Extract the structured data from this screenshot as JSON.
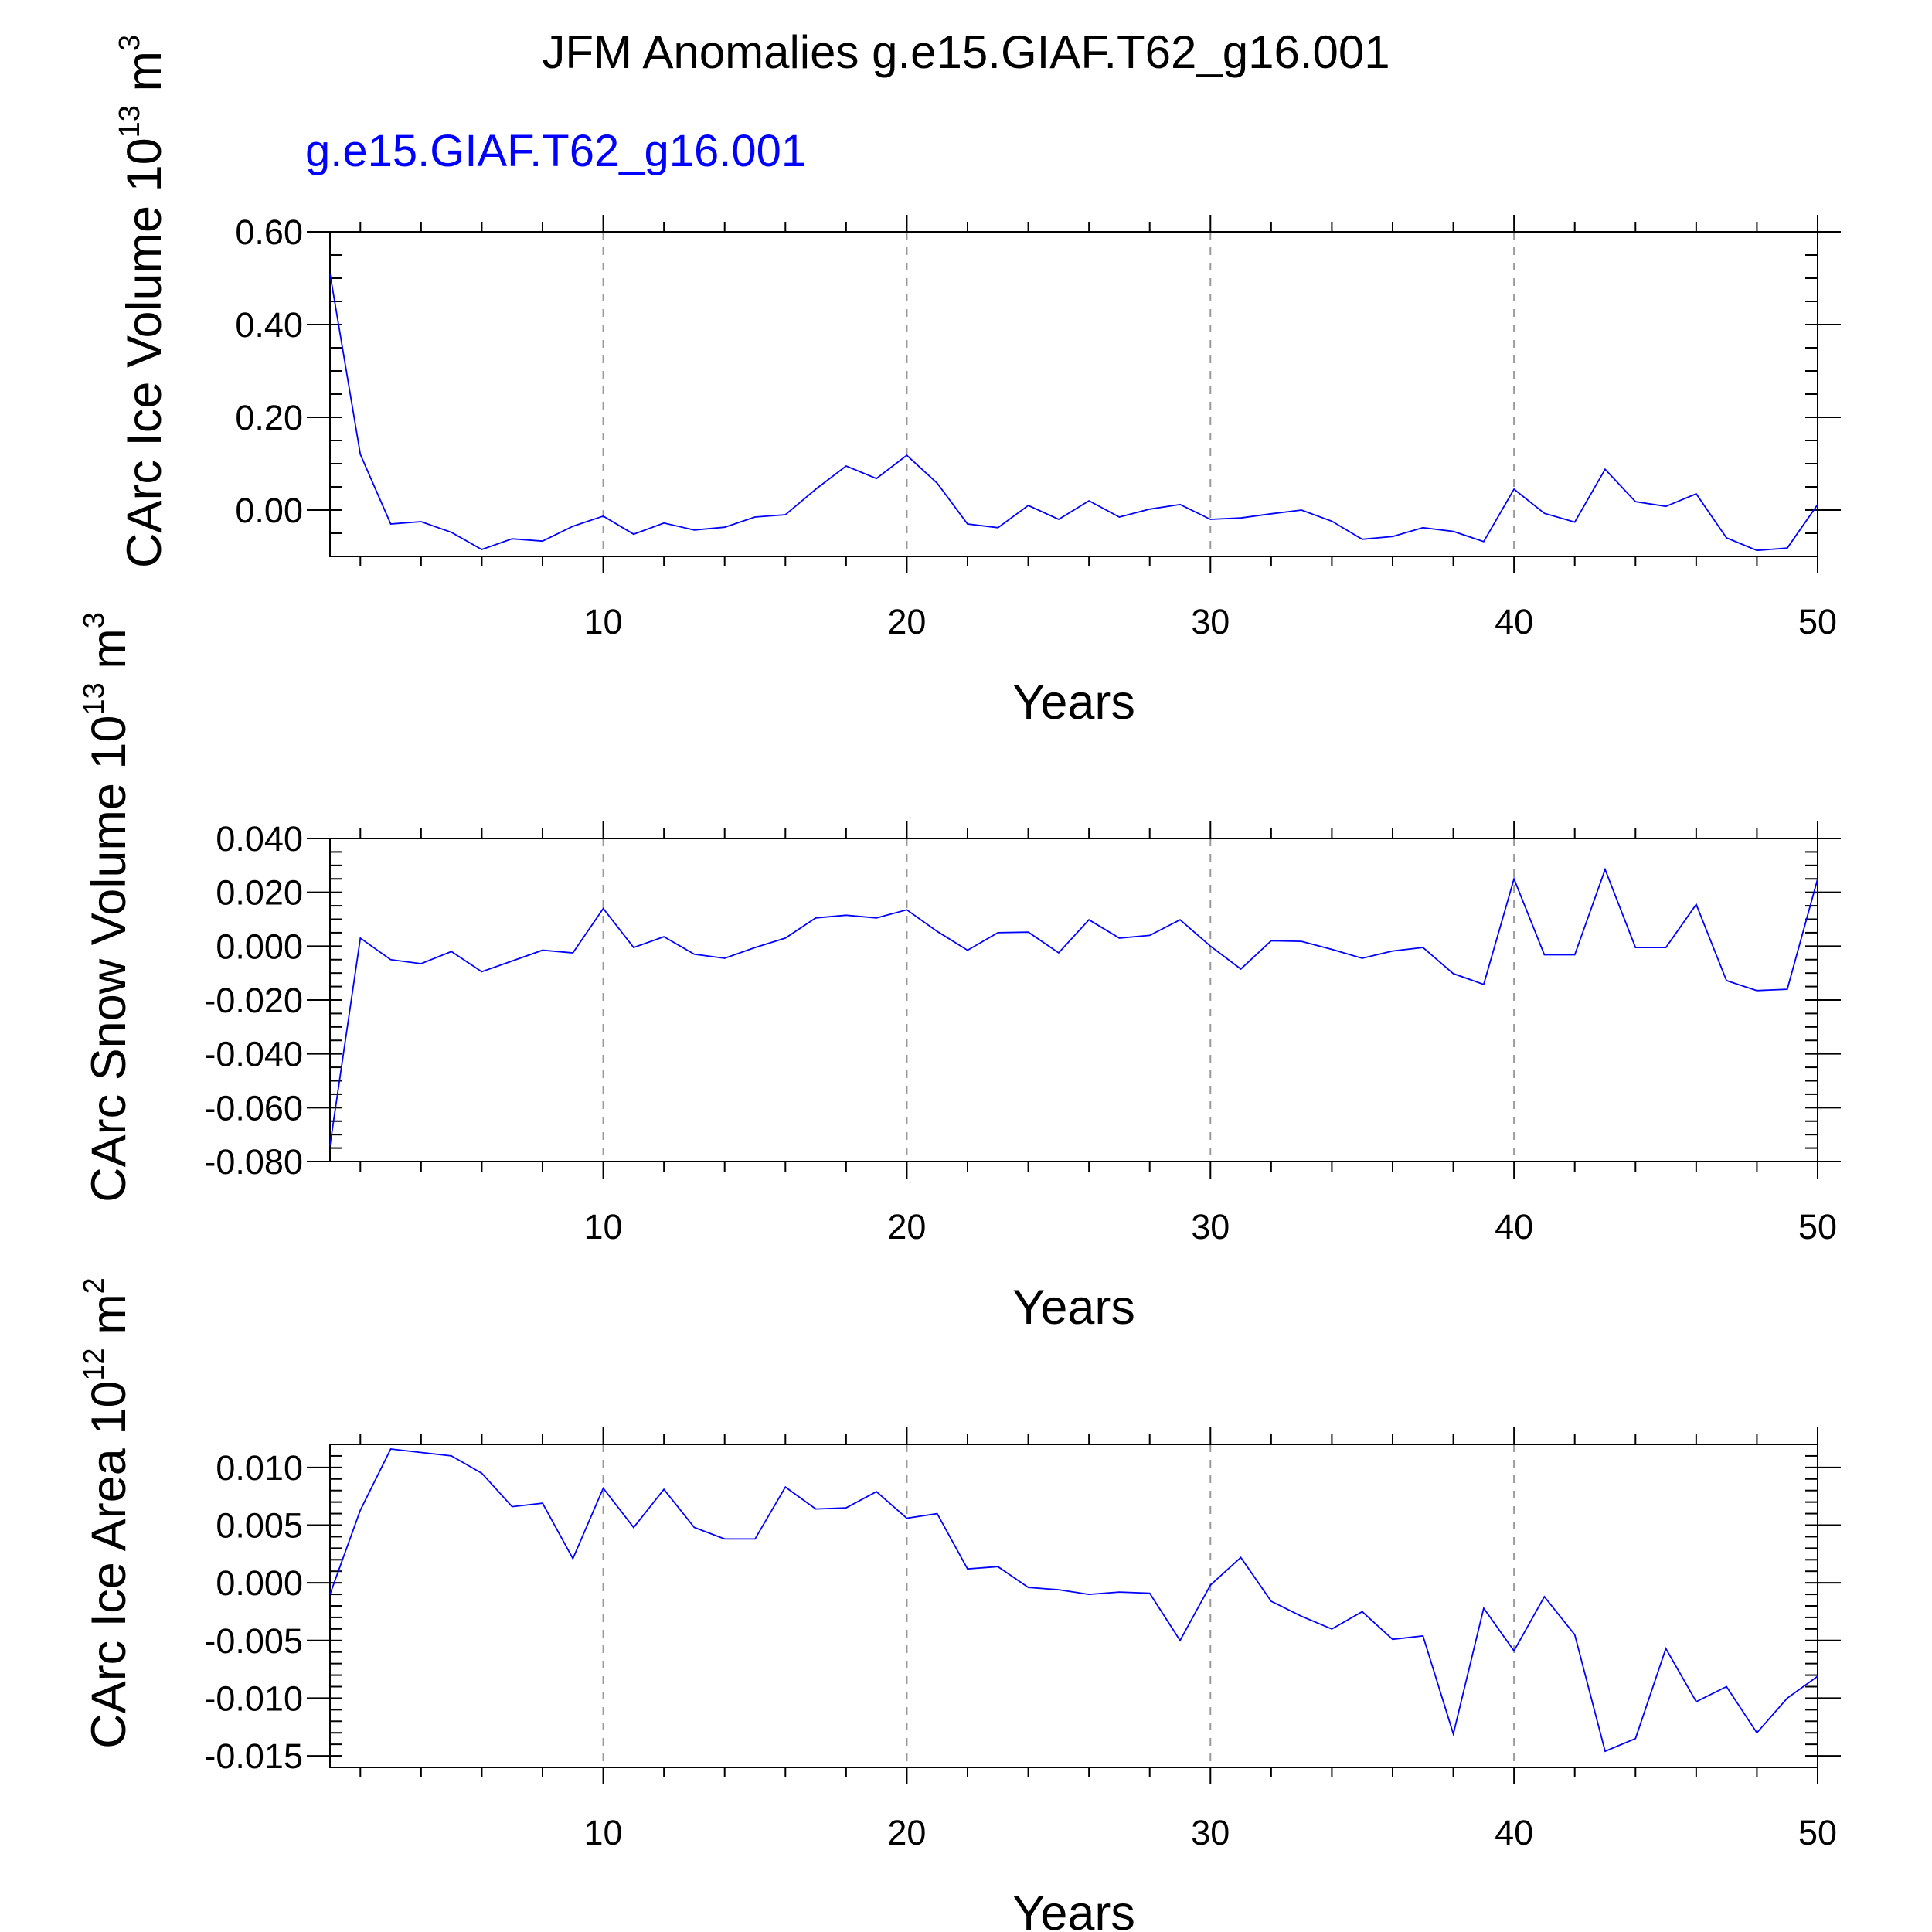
{
  "title": "JFM Anomalies g.e15.GIAF.T62_g16.001",
  "subtitle": "g.e15.GIAF.T62_g16.001",
  "line_color": "#0000ff",
  "chart_data": [
    {
      "type": "line",
      "ylabel": "CArc Ice Volume",
      "ylabel_unit": {
        "base": "10",
        "exp": "13",
        "unit": "m",
        "unit_exp": "3"
      },
      "xlabel": "Years",
      "xlim": [
        1,
        50
      ],
      "ylim": [
        -0.1,
        0.6
      ],
      "x_ticks": [
        10,
        20,
        30,
        40,
        50
      ],
      "y_ticks": [
        0.0,
        0.2,
        0.4,
        0.6
      ],
      "y_tick_labels": [
        "0.00",
        "0.20",
        "0.40",
        "0.60"
      ],
      "y_minor_step": 0.05,
      "grid": "vertical dashed at major x ticks",
      "series": [
        {
          "x": [
            1,
            2,
            3,
            4,
            5,
            6,
            7,
            8,
            9,
            10,
            11,
            12,
            13,
            14,
            15,
            16,
            17,
            18,
            19,
            20,
            21,
            22,
            23,
            24,
            25,
            26,
            27,
            28,
            29,
            30,
            31,
            32,
            33,
            34,
            35,
            36,
            37,
            38,
            39,
            40,
            41,
            42,
            43,
            44,
            45,
            46,
            47,
            48,
            49,
            50
          ],
          "values": [
            0.51,
            0.12,
            -0.03,
            -0.025,
            -0.048,
            -0.085,
            -0.062,
            -0.067,
            -0.035,
            -0.013,
            -0.052,
            -0.028,
            -0.043,
            -0.037,
            -0.015,
            -0.01,
            0.045,
            0.095,
            0.068,
            0.118,
            0.058,
            -0.03,
            -0.038,
            0.01,
            -0.02,
            0.02,
            -0.015,
            0.002,
            0.012,
            -0.02,
            -0.017,
            -0.008,
            0.0,
            -0.024,
            -0.063,
            -0.057,
            -0.038,
            -0.046,
            -0.068,
            0.045,
            -0.007,
            -0.026,
            0.088,
            0.018,
            0.008,
            0.035,
            -0.06,
            -0.087,
            -0.082,
            0.012
          ]
        }
      ]
    },
    {
      "type": "line",
      "ylabel": "CArc Snow Volume",
      "ylabel_unit": {
        "base": "10",
        "exp": "13",
        "unit": "m",
        "unit_exp": "3"
      },
      "xlabel": "Years",
      "xlim": [
        1,
        50
      ],
      "ylim": [
        -0.08,
        0.04
      ],
      "x_ticks": [
        10,
        20,
        30,
        40,
        50
      ],
      "y_ticks": [
        -0.08,
        -0.06,
        -0.04,
        -0.02,
        0.0,
        0.02,
        0.04
      ],
      "y_tick_labels": [
        "-0.080",
        "-0.060",
        "-0.040",
        "-0.020",
        "0.000",
        "0.020",
        "0.040"
      ],
      "y_minor_step": 0.005,
      "grid": "vertical dashed at major x ticks",
      "series": [
        {
          "x": [
            1,
            2,
            3,
            4,
            5,
            6,
            7,
            8,
            9,
            10,
            11,
            12,
            13,
            14,
            15,
            16,
            17,
            18,
            19,
            20,
            21,
            22,
            23,
            24,
            25,
            26,
            27,
            28,
            29,
            30,
            31,
            32,
            33,
            34,
            35,
            36,
            37,
            38,
            39,
            40,
            41,
            42,
            43,
            44,
            45,
            46,
            47,
            48,
            49,
            50
          ],
          "values": [
            -0.074,
            0.003,
            -0.005,
            -0.0065,
            -0.002,
            -0.0095,
            -0.0055,
            -0.0015,
            -0.0025,
            0.014,
            -0.0005,
            0.0035,
            -0.003,
            -0.0045,
            -0.0005,
            0.003,
            0.0105,
            0.0115,
            0.0105,
            0.0135,
            0.0055,
            -0.0015,
            0.005,
            0.0052,
            -0.0025,
            0.0098,
            0.003,
            0.004,
            0.0098,
            0.0,
            -0.0085,
            0.002,
            0.0018,
            -0.0012,
            -0.0045,
            -0.0018,
            -0.0005,
            -0.0102,
            -0.0142,
            0.025,
            -0.0032,
            -0.0032,
            0.0285,
            -0.0005,
            -0.0005,
            0.0155,
            -0.0128,
            -0.0165,
            -0.016,
            0.025
          ]
        }
      ]
    },
    {
      "type": "line",
      "ylabel": "CArc Ice Area",
      "ylabel_unit": {
        "base": "10",
        "exp": "12",
        "unit": "m",
        "unit_exp": "2"
      },
      "xlabel": "Years",
      "xlim": [
        1,
        50
      ],
      "ylim": [
        -0.016,
        0.012
      ],
      "x_ticks": [
        10,
        20,
        30,
        40,
        50
      ],
      "y_ticks": [
        -0.015,
        -0.01,
        -0.005,
        0.0,
        0.005,
        0.01
      ],
      "y_tick_labels": [
        "-0.015",
        "-0.010",
        "-0.005",
        "0.000",
        "0.005",
        "0.010"
      ],
      "y_minor_step": 0.001,
      "grid": "vertical dashed at major x ticks",
      "series": [
        {
          "x": [
            1,
            2,
            3,
            4,
            5,
            6,
            7,
            8,
            9,
            10,
            11,
            12,
            13,
            14,
            15,
            16,
            17,
            18,
            19,
            20,
            21,
            22,
            23,
            24,
            25,
            26,
            27,
            28,
            29,
            30,
            31,
            32,
            33,
            34,
            35,
            36,
            37,
            38,
            39,
            40,
            41,
            42,
            43,
            44,
            45,
            46,
            47,
            48,
            49,
            50
          ],
          "values": [
            -0.001,
            0.0063,
            0.0116,
            0.0113,
            0.011,
            0.0095,
            0.0066,
            0.0069,
            0.0021,
            0.0082,
            0.0048,
            0.0081,
            0.0048,
            0.0038,
            0.0038,
            0.0083,
            0.0064,
            0.0065,
            0.0079,
            0.0056,
            0.006,
            0.0012,
            0.0014,
            -0.0004,
            -0.0006,
            -0.001,
            -0.0008,
            -0.0009,
            -0.005,
            -0.0002,
            0.0022,
            -0.0016,
            -0.0029,
            -0.004,
            -0.0025,
            -0.0049,
            -0.0046,
            -0.0131,
            -0.0022,
            -0.0059,
            -0.0012,
            -0.0045,
            -0.0146,
            -0.0135,
            -0.0057,
            -0.0103,
            -0.009,
            -0.013,
            -0.01,
            -0.0081
          ]
        }
      ]
    }
  ]
}
